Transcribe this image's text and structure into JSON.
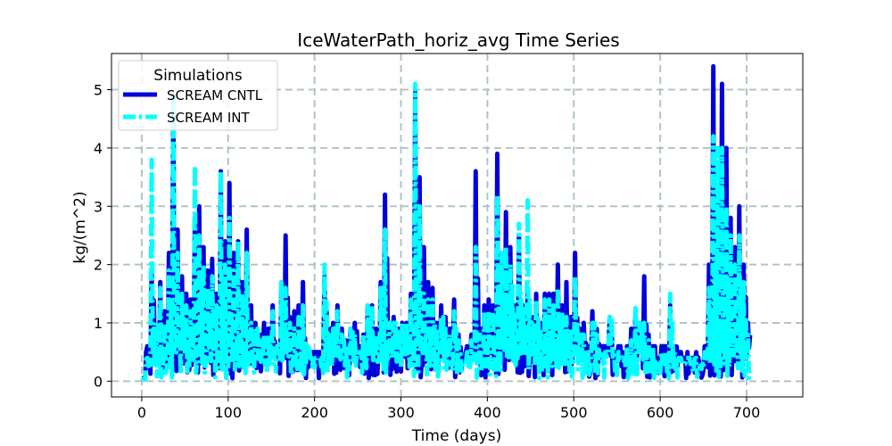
{
  "chart_data": {
    "type": "line",
    "title": "IceWaterPath_horiz_avg Time Series",
    "xlabel": "Time (days)",
    "ylabel": "kg/(m^2)",
    "xlim": [
      -35,
      765
    ],
    "ylim": [
      -0.27,
      5.62
    ],
    "xticks": [
      0,
      100,
      200,
      300,
      400,
      500,
      600,
      700
    ],
    "yticks": [
      0,
      1,
      2,
      3,
      4,
      5
    ],
    "grid": true,
    "legend": {
      "title": "Simulations",
      "position": "top-left"
    },
    "series": [
      {
        "name": "SCREAM CNTL",
        "color": "#0000dd",
        "style": "solid",
        "x_start": 0,
        "x_step": 5,
        "values": [
          0.05,
          0.6,
          1.9,
          0.9,
          1.7,
          1.2,
          2.2,
          4.9,
          2.6,
          1.8,
          1.5,
          1.4,
          2.8,
          3.0,
          2.3,
          1.9,
          2.1,
          1.5,
          3.6,
          2.4,
          3.4,
          2.2,
          2.4,
          1.7,
          2.6,
          1.3,
          1.0,
          0.8,
          1.0,
          0.9,
          1.3,
          0.6,
          1.6,
          2.5,
          1.1,
          1.2,
          1.3,
          1.7,
          0.6,
          0.5,
          0.5,
          0.5,
          1.8,
          0.9,
          1.0,
          1.3,
          0.9,
          0.7,
          0.9,
          1.0,
          0.6,
          0.8,
          1.3,
          1.3,
          0.9,
          1.7,
          3.2,
          1.0,
          1.1,
          0.9,
          1.0,
          1.0,
          1.5,
          5.0,
          3.5,
          2.3,
          1.7,
          1.6,
          1.0,
          1.3,
          1.1,
          0.9,
          1.4,
          0.8,
          0.4,
          0.6,
          0.8,
          3.6,
          0.9,
          1.3,
          1.4,
          1.3,
          3.9,
          2.2,
          2.9,
          2.3,
          1.3,
          2.5,
          1.3,
          1.5,
          1.1,
          1.5,
          1.0,
          1.5,
          1.5,
          1.5,
          2.0,
          1.3,
          1.7,
          1.1,
          2.2,
          0.9,
          1.0,
          0.6,
          1.2,
          0.9,
          0.6,
          0.6,
          1.1,
          0.5,
          0.6,
          0.5,
          0.6,
          0.9,
          1.2,
          1.0,
          1.8,
          0.8,
          0.6,
          0.4,
          0.6,
          0.6,
          1.3,
          0.6,
          0.5,
          0.4,
          0.5,
          0.4,
          0.5,
          0.3,
          0.6,
          2.0,
          5.4,
          3.3,
          5.1,
          4.0,
          2.8,
          2.3,
          3.0,
          2.0,
          1.0
        ]
      },
      {
        "name": "SCREAM INT",
        "color": "#00ffff",
        "style": "dashdot",
        "x_start": 0,
        "x_step": 5,
        "values": [
          0.03,
          0.4,
          3.8,
          1.0,
          1.6,
          1.0,
          1.9,
          4.9,
          2.2,
          1.5,
          1.3,
          1.2,
          3.7,
          2.5,
          2.0,
          1.6,
          1.8,
          1.3,
          3.6,
          2.0,
          2.8,
          1.9,
          2.4,
          1.5,
          2.2,
          1.0,
          0.9,
          0.7,
          0.8,
          0.8,
          1.2,
          0.6,
          1.7,
          1.6,
          1.0,
          0.9,
          1.1,
          1.3,
          0.6,
          0.4,
          0.4,
          0.4,
          2.0,
          0.8,
          0.9,
          1.2,
          0.8,
          0.6,
          0.9,
          0.8,
          0.5,
          0.8,
          1.3,
          1.3,
          0.8,
          1.6,
          2.6,
          1.0,
          1.0,
          0.9,
          1.0,
          1.0,
          1.4,
          5.1,
          3.0,
          1.5,
          1.4,
          1.4,
          0.9,
          1.1,
          0.9,
          0.8,
          1.2,
          0.7,
          0.3,
          0.5,
          0.7,
          2.3,
          0.8,
          1.2,
          1.2,
          1.2,
          3.2,
          2.2,
          2.3,
          2.0,
          1.2,
          2.7,
          1.3,
          3.1,
          1.0,
          1.4,
          0.9,
          1.4,
          1.4,
          1.3,
          1.6,
          1.2,
          1.1,
          0.9,
          1.8,
          0.8,
          0.8,
          0.5,
          1.0,
          0.8,
          0.5,
          0.5,
          1.1,
          0.5,
          0.5,
          0.4,
          0.6,
          0.7,
          1.3,
          1.0,
          1.0,
          0.7,
          0.6,
          0.3,
          0.5,
          0.5,
          1.5,
          0.5,
          0.4,
          0.3,
          0.4,
          0.3,
          0.4,
          0.3,
          0.5,
          1.6,
          4.2,
          4.0,
          4.0,
          3.0,
          2.5,
          2.0,
          2.5,
          1.7,
          0.8
        ]
      }
    ]
  }
}
